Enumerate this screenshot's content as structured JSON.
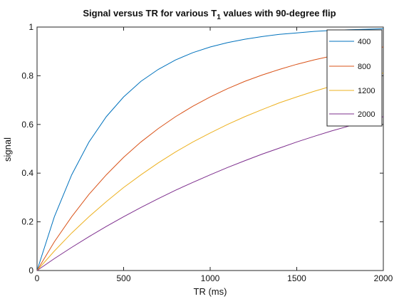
{
  "chart_data": {
    "type": "line",
    "title": "Signal versus TR for various T",
    "title_sub": "1",
    "title_suffix": " values with 90-degree flip",
    "xlabel": "TR (ms)",
    "ylabel": "signal",
    "xlim": [
      0,
      2000
    ],
    "ylim": [
      0,
      1
    ],
    "xticks": [
      0,
      500,
      1000,
      1500,
      2000
    ],
    "yticks": [
      0,
      0.2,
      0.4,
      0.6,
      0.8,
      1
    ],
    "ytick_labels": [
      "0",
      "0.2",
      "0.4",
      "0.6",
      "0.8",
      "1"
    ],
    "grid": false,
    "legend_position": "top-right",
    "x": [
      0,
      100,
      200,
      300,
      400,
      500,
      600,
      700,
      800,
      900,
      1000,
      1100,
      1200,
      1300,
      1400,
      1500,
      1600,
      1700,
      1800,
      1900,
      2000
    ],
    "series": [
      {
        "name": "400",
        "color": "#0072bd",
        "values": [
          0,
          0.221,
          0.393,
          0.528,
          0.632,
          0.713,
          0.777,
          0.826,
          0.865,
          0.895,
          0.918,
          0.936,
          0.95,
          0.961,
          0.97,
          0.976,
          0.982,
          0.986,
          0.989,
          0.991,
          0.993
        ]
      },
      {
        "name": "800",
        "color": "#d95319",
        "values": [
          0,
          0.118,
          0.221,
          0.313,
          0.393,
          0.465,
          0.528,
          0.583,
          0.632,
          0.675,
          0.713,
          0.747,
          0.777,
          0.803,
          0.826,
          0.847,
          0.865,
          0.881,
          0.895,
          0.907,
          0.918
        ]
      },
      {
        "name": "1200",
        "color": "#edb120",
        "values": [
          0,
          0.08,
          0.154,
          0.221,
          0.283,
          0.341,
          0.393,
          0.442,
          0.487,
          0.528,
          0.565,
          0.6,
          0.632,
          0.661,
          0.689,
          0.713,
          0.736,
          0.757,
          0.777,
          0.795,
          0.811
        ]
      },
      {
        "name": "2000",
        "color": "#7e2f8e",
        "values": [
          0,
          0.049,
          0.095,
          0.139,
          0.181,
          0.221,
          0.259,
          0.295,
          0.33,
          0.362,
          0.393,
          0.423,
          0.451,
          0.478,
          0.503,
          0.528,
          0.551,
          0.573,
          0.593,
          0.613,
          0.632
        ]
      }
    ]
  }
}
